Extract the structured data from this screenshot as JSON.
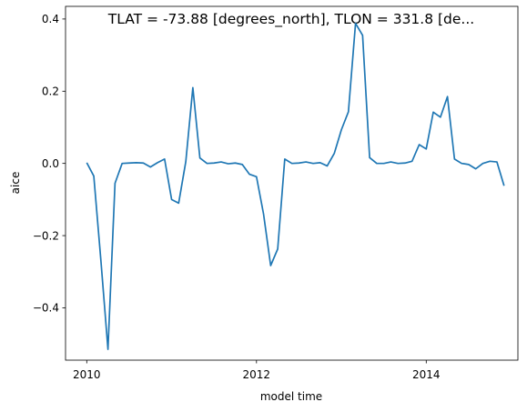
{
  "chart_data": {
    "type": "line",
    "title": "TLAT = -73.88 [degrees_north], TLON = 331.8 [de...",
    "xlabel": "model time",
    "ylabel": "aice",
    "x_ticks": [
      "2010",
      "2012",
      "2014"
    ],
    "y_ticks": [
      "−0.4",
      "−0.2",
      "0.0",
      "0.2",
      "0.4"
    ],
    "xlim": [
      2009.75,
      2015.08
    ],
    "ylim": [
      -0.545,
      0.435
    ],
    "grid": false,
    "series_color": "#1f77b4",
    "x": [
      2010.0,
      2010.083,
      2010.167,
      2010.25,
      2010.333,
      2010.417,
      2010.5,
      2010.583,
      2010.667,
      2010.75,
      2010.833,
      2010.917,
      2011.0,
      2011.083,
      2011.167,
      2011.25,
      2011.333,
      2011.417,
      2011.5,
      2011.583,
      2011.667,
      2011.75,
      2011.833,
      2011.917,
      2012.0,
      2012.083,
      2012.167,
      2012.25,
      2012.333,
      2012.417,
      2012.5,
      2012.583,
      2012.667,
      2012.75,
      2012.833,
      2012.917,
      2013.0,
      2013.083,
      2013.167,
      2013.25,
      2013.333,
      2013.417,
      2013.5,
      2013.583,
      2013.667,
      2013.75,
      2013.833,
      2013.917,
      2014.0,
      2014.083,
      2014.167,
      2014.25,
      2014.333,
      2014.417,
      2014.5,
      2014.583,
      2014.667,
      2014.75,
      2014.833,
      2014.917
    ],
    "y": [
      0.002,
      -0.035,
      -0.27,
      -0.515,
      -0.055,
      0.0,
      0.001,
      0.002,
      0.001,
      -0.01,
      0.002,
      0.012,
      -0.1,
      -0.11,
      0.005,
      0.21,
      0.015,
      0.0,
      0.001,
      0.004,
      -0.001,
      0.001,
      -0.003,
      -0.03,
      -0.037,
      -0.14,
      -0.283,
      -0.237,
      0.012,
      0.0,
      0.001,
      0.004,
      0.0,
      0.002,
      -0.007,
      0.028,
      0.093,
      0.143,
      0.388,
      0.355,
      0.016,
      0.0,
      0.0,
      0.004,
      0.0,
      0.001,
      0.006,
      0.052,
      0.04,
      0.142,
      0.128,
      0.185,
      0.012,
      0.0,
      -0.003,
      -0.015,
      0.0,
      0.006,
      0.004,
      -0.062
    ]
  }
}
